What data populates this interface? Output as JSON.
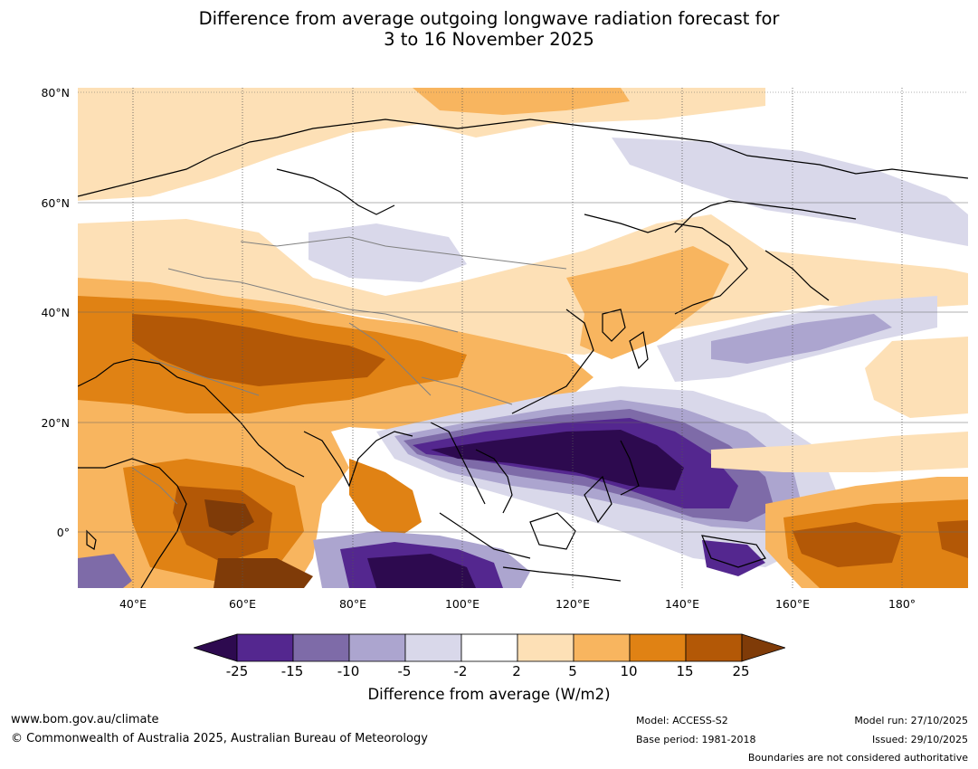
{
  "title": {
    "line1": "Difference from average outgoing longwave radiation forecast for",
    "line2": "3 to 16 November 2025"
  },
  "map": {
    "lat_labels": [
      "80°N",
      "60°N",
      "40°N",
      "20°N",
      "0°"
    ],
    "lon_labels": [
      "40°E",
      "60°E",
      "80°E",
      "100°E",
      "120°E",
      "140°E",
      "160°E",
      "180°"
    ],
    "region": "Asia, Indian Ocean and western Pacific",
    "lat_range": [
      -10,
      81
    ],
    "lon_range": [
      30,
      192
    ]
  },
  "colorbar": {
    "ticks": [
      "-25",
      "-15",
      "-10",
      "-5",
      "-2",
      "2",
      "5",
      "10",
      "15",
      "25"
    ],
    "colors": [
      "#2d0a4f",
      "#54278f",
      "#7e6ba8",
      "#aca5cf",
      "#d9d8ea",
      "#ffffff",
      "#fde0b6",
      "#f8b55f",
      "#e08214",
      "#b35806",
      "#7f3b08"
    ],
    "label": "Difference from average (W/m2)"
  },
  "footer": {
    "website": "www.bom.gov.au/climate",
    "copyright": "© Commonwealth of Australia 2025, Australian Bureau of Meteorology",
    "model": "Model: ACCESS-S2",
    "base_period": "Base period: 1981-2018",
    "model_run": "Model run: 27/10/2025",
    "issued": "Issued: 29/10/2025",
    "disclaimer": "Boundaries are not considered authoritative"
  }
}
